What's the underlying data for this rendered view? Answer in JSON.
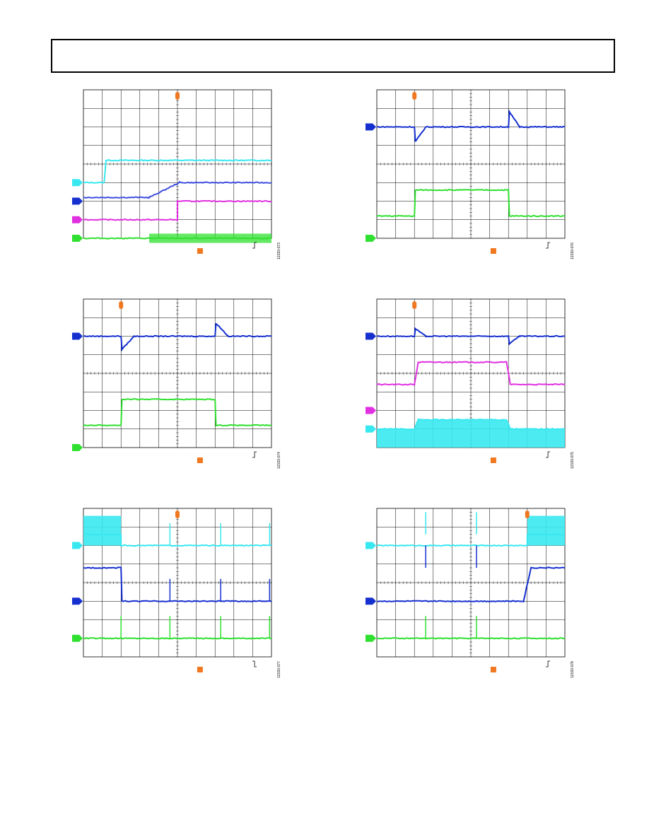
{
  "header": {
    "text": ""
  },
  "colors": {
    "cyan": "#38E8F0",
    "blue": "#1630D0",
    "blue_light": "#4050E0",
    "magenta": "#E030E0",
    "green": "#30E030",
    "trigger": "#F07820",
    "grid": "#000000"
  },
  "chart_data": [
    {
      "type": "line",
      "id": "scope-1",
      "figure_id": "12193-073",
      "trigger": "rising",
      "divisions": {
        "x": 10,
        "y": 8
      },
      "series": [
        {
          "color": "cyan",
          "marker": 3.0,
          "segments": [
            [
              0,
              3.0
            ],
            [
              1.1,
              3.0
            ],
            [
              1.2,
              4.2
            ],
            [
              10,
              4.2
            ]
          ]
        },
        {
          "color": "blue_light",
          "marker": null,
          "segments": [
            [
              0,
              2.2
            ],
            [
              3.5,
              2.2
            ],
            [
              5.1,
              3.0
            ],
            [
              10,
              3.0
            ]
          ]
        },
        {
          "color": "blue",
          "marker": 2.0,
          "segments": []
        },
        {
          "color": "magenta",
          "marker": 1.0,
          "segments": [
            [
              0,
              1.0
            ],
            [
              5.0,
              1.0
            ],
            [
              5.0,
              2.0
            ],
            [
              10,
              2.0
            ]
          ]
        },
        {
          "color": "green",
          "marker": 0.0,
          "segments": [
            [
              0,
              0.0
            ],
            [
              3.5,
              0.0
            ],
            [
              10,
              0.0
            ]
          ],
          "noise_from": 3.5,
          "noise_amp": 0.25
        }
      ]
    },
    {
      "type": "line",
      "id": "scope-2",
      "figure_id": "12193-076",
      "trigger": "rising",
      "divisions": {
        "x": 10,
        "y": 8
      },
      "series": [
        {
          "color": "blue",
          "marker": 6.0,
          "segments": [
            [
              0,
              6.0
            ],
            [
              2.0,
              6.0
            ],
            [
              2.05,
              5.2
            ],
            [
              2.6,
              6.0
            ],
            [
              7.0,
              6.0
            ],
            [
              7.05,
              6.8
            ],
            [
              7.6,
              6.0
            ],
            [
              10,
              6.0
            ]
          ]
        },
        {
          "color": "green",
          "marker": 0.0,
          "segments": [
            [
              0,
              1.2
            ],
            [
              2.0,
              1.2
            ],
            [
              2.05,
              2.6
            ],
            [
              7.0,
              2.6
            ],
            [
              7.05,
              1.2
            ],
            [
              10,
              1.2
            ]
          ]
        }
      ]
    },
    {
      "type": "line",
      "id": "scope-3",
      "figure_id": "12193-074",
      "trigger": "rising",
      "divisions": {
        "x": 10,
        "y": 8
      },
      "series": [
        {
          "color": "blue",
          "marker": 6.0,
          "segments": [
            [
              0,
              6.0
            ],
            [
              2.0,
              6.0
            ],
            [
              2.05,
              5.3
            ],
            [
              2.7,
              6.0
            ],
            [
              7.0,
              6.0
            ],
            [
              7.05,
              6.7
            ],
            [
              7.7,
              6.0
            ],
            [
              10,
              6.0
            ]
          ]
        },
        {
          "color": "green",
          "marker": 0.0,
          "segments": [
            [
              0,
              1.2
            ],
            [
              2.0,
              1.2
            ],
            [
              2.05,
              2.6
            ],
            [
              7.0,
              2.6
            ],
            [
              7.05,
              1.2
            ],
            [
              10,
              1.2
            ]
          ]
        }
      ]
    },
    {
      "type": "line",
      "id": "scope-4",
      "figure_id": "12193-075",
      "trigger": "rising",
      "divisions": {
        "x": 10,
        "y": 8
      },
      "series": [
        {
          "color": "blue",
          "marker": 6.0,
          "segments": [
            [
              0,
              6.0
            ],
            [
              2.0,
              6.0
            ],
            [
              2.05,
              6.4
            ],
            [
              2.6,
              6.0
            ],
            [
              7.0,
              6.0
            ],
            [
              7.05,
              5.6
            ],
            [
              7.6,
              6.0
            ],
            [
              10,
              6.0
            ]
          ]
        },
        {
          "color": "magenta",
          "marker": 2.0,
          "segments": [
            [
              0,
              3.4
            ],
            [
              2.0,
              3.4
            ],
            [
              2.2,
              4.6
            ],
            [
              6.9,
              4.6
            ],
            [
              7.1,
              3.4
            ],
            [
              10,
              3.4
            ]
          ]
        },
        {
          "color": "cyan",
          "marker": 1.0,
          "band": true,
          "segments": [
            [
              0,
              1.0
            ],
            [
              2.0,
              1.0
            ],
            [
              2.2,
              1.5
            ],
            [
              6.9,
              1.5
            ],
            [
              7.1,
              1.0
            ],
            [
              10,
              1.0
            ]
          ]
        }
      ]
    },
    {
      "type": "line",
      "id": "scope-5",
      "figure_id": "12193-077",
      "trigger": "falling",
      "divisions": {
        "x": 10,
        "y": 8
      },
      "series": [
        {
          "color": "cyan",
          "marker": 6.0,
          "band_until": 2.0,
          "segments": [
            [
              0,
              6.6
            ],
            [
              2.0,
              6.6
            ],
            [
              2.0,
              6.0
            ],
            [
              10,
              6.0
            ]
          ],
          "spikes": [
            4.6,
            7.3,
            9.9
          ]
        },
        {
          "color": "blue",
          "marker": 3.0,
          "segments": [
            [
              0,
              4.8
            ],
            [
              2.0,
              4.8
            ],
            [
              2.05,
              3.0
            ],
            [
              10,
              3.0
            ]
          ],
          "spikes": [
            4.6,
            7.3,
            9.9
          ]
        },
        {
          "color": "green",
          "marker": 1.0,
          "segments": [
            [
              0,
              1.0
            ],
            [
              10,
              1.0
            ]
          ],
          "spikes": [
            2.0,
            4.6,
            7.3,
            9.9
          ]
        }
      ]
    },
    {
      "type": "line",
      "id": "scope-6",
      "figure_id": "12193-078",
      "trigger": "rising",
      "divisions": {
        "x": 10,
        "y": 8
      },
      "series": [
        {
          "color": "cyan",
          "marker": 6.0,
          "band_from": 8.0,
          "segments": [
            [
              0,
              6.0
            ],
            [
              8.0,
              6.0
            ],
            [
              8.0,
              6.6
            ],
            [
              10,
              6.6
            ]
          ],
          "spikes": [
            2.6,
            5.3
          ]
        },
        {
          "color": "blue",
          "marker": 3.0,
          "segments": [
            [
              0,
              3.0
            ],
            [
              7.8,
              3.0
            ],
            [
              8.2,
              4.8
            ],
            [
              10,
              4.8
            ]
          ],
          "spikes": [
            2.6,
            5.3
          ]
        },
        {
          "color": "green",
          "marker": 1.0,
          "segments": [
            [
              0,
              1.0
            ],
            [
              10,
              1.0
            ]
          ],
          "spikes": [
            2.6,
            5.3
          ]
        }
      ]
    }
  ]
}
